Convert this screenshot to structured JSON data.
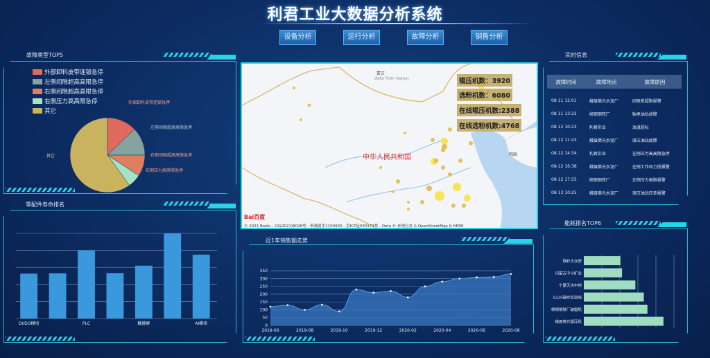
{
  "header": {
    "title": "利君工业大数据分析系统",
    "nav": [
      "设备分析",
      "运行分析",
      "故障分析",
      "销售分析"
    ]
  },
  "colors": {
    "accent": "#29d3e8",
    "bar_blue": "#3a98dc",
    "bar_green": "#9fdcc0",
    "pie": [
      "#e06a5e",
      "#86a39f",
      "#e07f60",
      "#a4e3c6",
      "#c9b35e"
    ]
  },
  "fault_panel": {
    "title": "故障类型TOP5"
  },
  "life_panel": {
    "title": "零配件寿命排名"
  },
  "sales_panel": {
    "title": "近1年销售额走势"
  },
  "realtime_panel": {
    "title": "实时信息",
    "columns": [
      "故障时间",
      "故障地点",
      "故障原因"
    ],
    "rows": [
      [
        "08-11 12:01",
        "峨眉佛光水泥厂",
        "间隙差超限报警"
      ],
      [
        "08-11 13:22",
        "柳钢钢铁厂",
        "轴承油站故障"
      ],
      [
        "08-12 10:23",
        "利君实业",
        "油温超标"
      ],
      [
        "08-12 11:43",
        "峨眉佛光水泥厂",
        "液压油站故障"
      ],
      [
        "08-12 14:34",
        "利君实业",
        "左侧压力高高限急停"
      ],
      [
        "08-12 16:38",
        "峨眉佛光水泥厂",
        "左侧工作压力低报警"
      ],
      [
        "08-12 17:55",
        "柳钢钢铁厂",
        "左侧压力高限报警"
      ],
      [
        "08-13 10:25",
        "峨眉佛光水泥厂",
        "液压油站压差报警"
      ]
    ]
  },
  "energy_panel": {
    "title": "能耗排名TOP6"
  },
  "map": {
    "country_label": "中华人民共和国",
    "mongolia_label": "蒙古",
    "credit": "data from leejun",
    "korea_label": "韩国",
    "copyright": "© 2021 Baidu - GS(2021)6026号 - 甲测资字1100930 - 京ICP证030173号 - Data © 长地万方 & OpenStreetMap & HERE",
    "logo": "Bai百度",
    "stats": [
      "辊压机数：3920",
      "选粉机数：6080",
      "在线辊压机数:2388",
      "在线选粉机数:4768"
    ]
  },
  "chart_data": [
    {
      "type": "pie",
      "legend": [
        "外部卸料皮带连锁急停",
        "左侧间隙超高高限急停",
        "右侧间隙超高高限急停",
        "右侧压力高高限急停",
        "其它"
      ],
      "values": [
        12.8,
        12.2,
        9.2,
        5.8,
        60
      ],
      "legend_placement": "top-left"
    },
    {
      "type": "bar",
      "categories": [
        "DI/DO模块",
        "",
        "PLC",
        "",
        "触摸屏",
        "",
        "AI模块"
      ],
      "values": [
        264,
        266,
        400,
        267,
        310,
        500,
        375
      ],
      "ylim": [
        0,
        500
      ],
      "grid": true
    },
    {
      "type": "area",
      "x": [
        "2019-06",
        "2019-07",
        "2019-08",
        "2019-09",
        "2019-10",
        "2019-11",
        "2019-12",
        "2020-01",
        "2020-02",
        "2020-03",
        "2020-04",
        "2020-05",
        "2020-06",
        "2020-07",
        "2020-08"
      ],
      "xticks": [
        "2019-06",
        "2019-08",
        "2019-10",
        "2019-12",
        "2020-02",
        "2020-04",
        "2020-06",
        "2020-08"
      ],
      "values": [
        120,
        130,
        100,
        133,
        90,
        230,
        210,
        220,
        180,
        250,
        280,
        300,
        308,
        310,
        330
      ],
      "ylim": [
        0,
        350
      ],
      "yticks": [
        0,
        50,
        100,
        150,
        200,
        250,
        300,
        350
      ],
      "grid": true
    },
    {
      "type": "bar",
      "orientation": "horizontal",
      "categories": [
        "铁岭大伙房",
        "内蒙古中小矿业",
        "宁夏天水中材",
        "5225破碎实验线",
        "柳钢钢铁厂破磨机",
        "峨眉佛光辊压机"
      ],
      "values": [
        203,
        212,
        286,
        333,
        353,
        442
      ],
      "xlim": [
        0,
        500
      ],
      "grid": true
    }
  ]
}
